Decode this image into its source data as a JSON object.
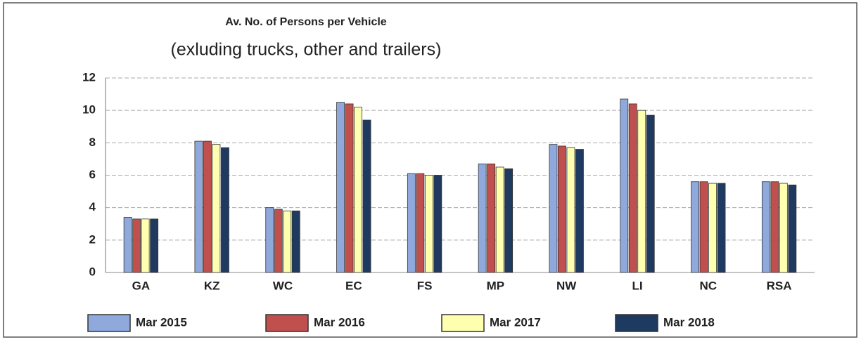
{
  "chart_data": {
    "type": "bar",
    "title": "Av. No. of Persons per Vehicle",
    "subtitle": "(exluding trucks, other and trailers)",
    "categories": [
      "GA",
      "KZ",
      "WC",
      "EC",
      "FS",
      "MP",
      "NW",
      "LI",
      "NC",
      "RSA"
    ],
    "series": [
      {
        "name": "Mar 2015",
        "color": "#8fa9dc",
        "values": [
          3.4,
          8.1,
          4.0,
          10.5,
          6.1,
          6.7,
          7.9,
          10.7,
          5.6,
          5.6
        ]
      },
      {
        "name": "Mar 2016",
        "color": "#c0504d",
        "values": [
          3.3,
          8.1,
          3.9,
          10.4,
          6.1,
          6.7,
          7.8,
          10.4,
          5.6,
          5.6
        ]
      },
      {
        "name": "Mar 2017",
        "color": "#ffffb0",
        "values": [
          3.3,
          7.9,
          3.8,
          10.2,
          6.0,
          6.5,
          7.7,
          10.0,
          5.5,
          5.5
        ]
      },
      {
        "name": "Mar 2018",
        "color": "#1f3a60",
        "values": [
          3.3,
          7.7,
          3.8,
          9.4,
          6.0,
          6.4,
          7.6,
          9.7,
          5.5,
          5.4
        ]
      }
    ],
    "ylim": [
      0,
      12
    ],
    "yticks": [
      0,
      2,
      4,
      6,
      8,
      10,
      12
    ],
    "grid": true,
    "legend": "bottom"
  }
}
